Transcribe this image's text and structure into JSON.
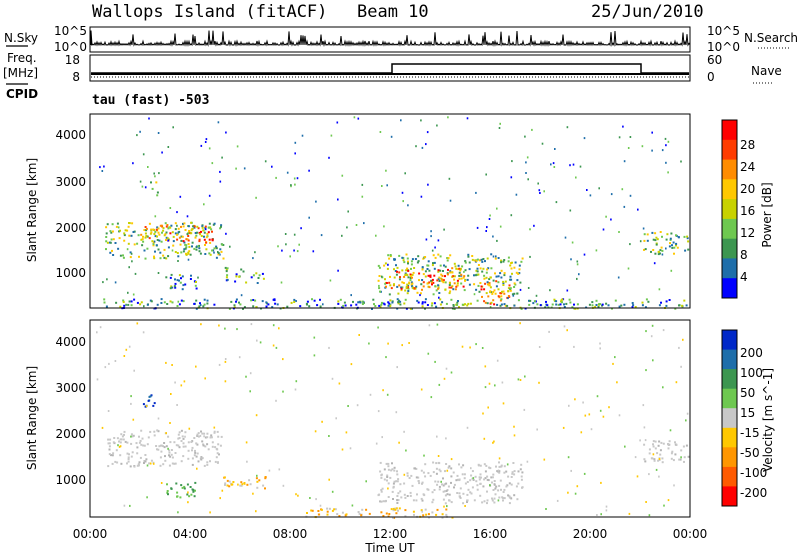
{
  "header": {
    "station": "Wallops Island (fitACF)",
    "beam": "Beam 10",
    "date": "25/Jun/2010"
  },
  "side_labels": {
    "nsky": "N.Sky",
    "freq": "Freq.",
    "freq_unit": "[MHz]",
    "cpid": "CPID",
    "nsearch": "N.Search",
    "nave": "Nave"
  },
  "noise_panel": {
    "left_ticks": [
      "10^5",
      "10^0"
    ],
    "right_ticks": [
      "10^5",
      "10^0"
    ]
  },
  "freq_panel": {
    "left_ticks": [
      "18",
      "8"
    ],
    "right_ticks": [
      "60",
      "0"
    ]
  },
  "cpid_text": "tau (fast) -503",
  "chart_data": [
    {
      "type": "heatmap",
      "name": "power",
      "ylabel": "Slant Range [km]",
      "y_ticks": [
        "4000",
        "3000",
        "2000",
        "1000"
      ],
      "ylim": [
        180,
        4500
      ],
      "colorbar": {
        "label": "Power [dB]",
        "ticks": [
          "28",
          "24",
          "20",
          "16",
          "12",
          "8",
          "4"
        ],
        "colors": [
          "#ff0000",
          "#ff3c00",
          "#ff8c00",
          "#ffc800",
          "#c8d200",
          "#6ec850",
          "#3c9650",
          "#1e6eaa",
          "#0000ff"
        ]
      },
      "regions": [
        {
          "t0": 0.6,
          "t1": 5.3,
          "r0": 1300,
          "r1": 2100,
          "class": "mid"
        },
        {
          "t0": 2.0,
          "t1": 4.9,
          "r0": 1650,
          "r1": 2050,
          "class": "strong"
        },
        {
          "t0": 2.3,
          "t1": 2.7,
          "r0": 2700,
          "r1": 3000,
          "class": "mid"
        },
        {
          "t0": 3.0,
          "t1": 4.3,
          "r0": 600,
          "r1": 950,
          "class": "weak"
        },
        {
          "t0": 5.3,
          "t1": 7.0,
          "r0": 750,
          "r1": 1100,
          "class": "weak"
        },
        {
          "t0": 11.5,
          "t1": 17.3,
          "r0": 500,
          "r1": 1400,
          "class": "mid"
        },
        {
          "t0": 11.8,
          "t1": 15.0,
          "r0": 600,
          "r1": 1100,
          "class": "strong"
        },
        {
          "t0": 15.6,
          "t1": 16.8,
          "r0": 250,
          "r1": 800,
          "class": "strong"
        },
        {
          "t0": 22.1,
          "t1": 24.0,
          "r0": 1400,
          "r1": 1900,
          "class": "mid"
        },
        {
          "t0": 0.5,
          "t1": 24.0,
          "r0": 180,
          "r1": 400,
          "class": "weak"
        }
      ]
    },
    {
      "type": "heatmap",
      "name": "velocity",
      "xlabel": "Time UT",
      "ylabel": "Slant Range [km]",
      "y_ticks": [
        "4000",
        "3000",
        "2000",
        "1000"
      ],
      "x_ticks": [
        "00:00",
        "04:00",
        "08:00",
        "12:00",
        "16:00",
        "20:00",
        "00:00"
      ],
      "xlim": [
        0,
        24
      ],
      "ylim": [
        180,
        4500
      ],
      "colorbar": {
        "label": "Velocity [m s^-1]",
        "ticks": [
          "200",
          "100",
          "50",
          "15",
          "-15",
          "-50",
          "-100",
          "-200"
        ],
        "colors": [
          "#0028c8",
          "#1e6eaa",
          "#3c9650",
          "#6ec850",
          "#c8c8c8",
          "#ffc800",
          "#ff9600",
          "#ff5a00",
          "#ff0000"
        ]
      },
      "regions": [
        {
          "t0": 0.6,
          "t1": 5.3,
          "r0": 1300,
          "r1": 2100,
          "class": "ground"
        },
        {
          "t0": 2.1,
          "t1": 2.6,
          "r0": 2600,
          "r1": 2900,
          "class": "blue"
        },
        {
          "t0": 3.0,
          "t1": 4.3,
          "r0": 600,
          "r1": 950,
          "class": "green"
        },
        {
          "t0": 5.3,
          "t1": 7.0,
          "r0": 800,
          "r1": 1100,
          "class": "orange"
        },
        {
          "t0": 11.5,
          "t1": 17.3,
          "r0": 500,
          "r1": 1400,
          "class": "ground"
        },
        {
          "t0": 22.1,
          "t1": 24.0,
          "r0": 1400,
          "r1": 1900,
          "class": "ground"
        },
        {
          "t0": 8.5,
          "t1": 14.5,
          "r0": 180,
          "r1": 400,
          "class": "orange"
        }
      ]
    }
  ]
}
